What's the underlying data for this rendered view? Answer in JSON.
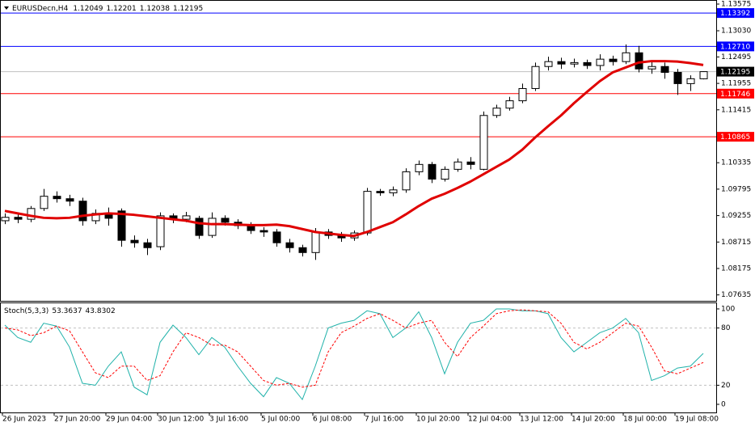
{
  "chart_data": [
    {
      "type": "candlestick",
      "title": "EURUSDecn,H4",
      "candles": {
        "open": [
          1.0915,
          1.0922,
          1.0918,
          1.094,
          1.0965,
          1.096,
          1.0955,
          1.0915,
          1.093,
          1.0935,
          1.0875,
          1.087,
          1.0862,
          1.0925,
          1.0918,
          1.092,
          1.0885,
          1.092,
          1.0912,
          1.0905,
          1.0895,
          1.0892,
          1.087,
          1.086,
          1.085,
          1.0892,
          1.0885,
          1.088,
          1.089,
          1.0975,
          1.0972,
          1.0978,
          1.1015,
          1.103,
          1.1,
          1.102,
          1.1035,
          1.102,
          1.113,
          1.1145,
          1.116,
          1.1185,
          1.123,
          1.124,
          1.1235,
          1.1238,
          1.1232,
          1.1245,
          1.124,
          1.1258,
          1.1225,
          1.123,
          1.1218,
          1.1195,
          1.12049
        ],
        "high": [
          1.093,
          1.0928,
          1.0945,
          1.098,
          1.0975,
          1.0968,
          1.0962,
          1.0938,
          1.0942,
          1.094,
          1.0885,
          1.0878,
          1.0932,
          1.093,
          1.0933,
          1.0925,
          1.0932,
          1.0926,
          1.0918,
          1.0912,
          1.0902,
          1.0898,
          1.0878,
          1.0866,
          1.09,
          1.0898,
          1.0892,
          1.0895,
          1.0982,
          1.098,
          1.0985,
          1.1022,
          1.1038,
          1.1035,
          1.1026,
          1.1042,
          1.1045,
          1.1138,
          1.1152,
          1.1168,
          1.1195,
          1.1238,
          1.125,
          1.1248,
          1.1246,
          1.1244,
          1.1255,
          1.1252,
          1.1275,
          1.1272,
          1.124,
          1.1238,
          1.1225,
          1.1212,
          1.12201
        ],
        "low": [
          1.0908,
          1.091,
          1.0912,
          1.0935,
          1.0952,
          1.0945,
          1.0905,
          1.0908,
          1.0905,
          1.0862,
          1.086,
          1.0845,
          1.0855,
          1.091,
          1.0912,
          1.0878,
          1.088,
          1.0905,
          1.0898,
          1.0888,
          1.0882,
          1.0862,
          1.085,
          1.0842,
          1.0835,
          1.0878,
          1.0872,
          1.0874,
          1.0885,
          1.0966,
          1.0965,
          1.0972,
          1.1008,
          1.0992,
          1.0995,
          1.1015,
          1.102,
          1.1018,
          1.1125,
          1.114,
          1.1155,
          1.118,
          1.1222,
          1.1225,
          1.1228,
          1.1225,
          1.1222,
          1.1232,
          1.1235,
          1.1218,
          1.1215,
          1.1205,
          1.1172,
          1.118,
          1.12038
        ],
        "close": [
          1.0922,
          1.0918,
          1.094,
          1.0965,
          1.096,
          1.0955,
          1.0915,
          1.093,
          1.092,
          1.0875,
          1.087,
          1.086,
          1.0925,
          1.0918,
          1.0925,
          1.0885,
          1.092,
          1.0912,
          1.0905,
          1.0895,
          1.0892,
          1.087,
          1.086,
          1.085,
          1.0892,
          1.0885,
          1.088,
          1.089,
          1.0975,
          1.0972,
          1.0978,
          1.1015,
          1.103,
          1.1,
          1.102,
          1.1035,
          1.103,
          1.113,
          1.1145,
          1.116,
          1.1185,
          1.123,
          1.124,
          1.1235,
          1.1238,
          1.1232,
          1.1245,
          1.124,
          1.1258,
          1.1225,
          1.123,
          1.1218,
          1.1195,
          1.1205,
          1.12195
        ],
        "up_color": "#ffffff",
        "down_color": "#000000"
      },
      "lines": [
        {
          "color": "#e00000",
          "values": [
            1.0935,
            1.093,
            1.0925,
            1.0921,
            1.092,
            1.0921,
            1.0925,
            1.0928,
            1.093,
            1.0929,
            1.0927,
            1.0924,
            1.0921,
            1.0918,
            1.0915,
            1.091,
            1.0908,
            1.0908,
            1.0907,
            1.0906,
            1.0906,
            1.0907,
            1.0904,
            1.0898,
            1.0892,
            1.0889,
            1.0886,
            1.0884,
            1.0892,
            1.0902,
            1.0912,
            1.0928,
            1.0945,
            1.096,
            1.097,
            1.0982,
            1.0995,
            1.101,
            1.1025,
            1.104,
            1.106,
            1.1085,
            1.1108,
            1.113,
            1.1155,
            1.1178,
            1.12,
            1.1218,
            1.1228,
            1.1238,
            1.1241,
            1.1241,
            1.124,
            1.1237,
            1.1233
          ]
        }
      ],
      "levels": [
        {
          "value": 1.13392,
          "label": "1.13392",
          "color": "#0000ff",
          "box": "#0000ff"
        },
        {
          "value": 1.1271,
          "label": "1.12710",
          "color": "#0000ff",
          "box": "#0000ff"
        },
        {
          "value": 1.12195,
          "label": "1.12195",
          "color": "#c0c0c0",
          "box": "#000000"
        },
        {
          "value": 1.11746,
          "label": "1.11746",
          "color": "#ff0000",
          "box": "#ff0000"
        },
        {
          "value": 1.10865,
          "label": "1.10865",
          "color": "#ff0000",
          "box": "#ff0000"
        }
      ],
      "xlim": [
        -0.375,
        55
      ],
      "xticks": [
        {
          "value": 0,
          "label": "26 Jun 2023"
        },
        {
          "value": 4,
          "label": "27 Jun 20:00"
        },
        {
          "value": 8,
          "label": "29 Jun 04:00"
        },
        {
          "value": 12,
          "label": "30 Jun 12:00"
        },
        {
          "value": 16,
          "label": "3 Jul 16:00"
        },
        {
          "value": 20,
          "label": "5 Jul 00:00"
        },
        {
          "value": 24,
          "label": "6 Jul 08:00"
        },
        {
          "value": 28,
          "label": "7 Jul 16:00"
        },
        {
          "value": 32,
          "label": "10 Jul 20:00"
        },
        {
          "value": 36,
          "label": "12 Jul 04:00"
        },
        {
          "value": 40,
          "label": "13 Jul 12:00"
        },
        {
          "value": 44,
          "label": "14 Jul 20:00"
        },
        {
          "value": 48,
          "label": "18 Jul 00:00"
        },
        {
          "value": 52,
          "label": "19 Jul 08:00"
        }
      ],
      "ylim": [
        1.07514,
        1.13658
      ],
      "yticks": [
        1.13575,
        {
          "value": 1.1303,
          "label": "1.13030"
        },
        1.12495,
        1.11955,
        1.11415,
        1.10335,
        1.09795,
        1.09255,
        1.08715,
        1.08175,
        1.07635
      ]
    },
    {
      "type": "line",
      "title": "Stoch(5,3,3)",
      "series": [
        {
          "color": "#20b2aa",
          "dash": false,
          "values": [
            83,
            70,
            65,
            85,
            82,
            60,
            22,
            20,
            40,
            55,
            18,
            10,
            65,
            83,
            70,
            52,
            70,
            60,
            40,
            22,
            8,
            28,
            22,
            5,
            40,
            80,
            85,
            88,
            98,
            95,
            70,
            80,
            97,
            70,
            32,
            65,
            85,
            88,
            100,
            100,
            98,
            98,
            95,
            70,
            55,
            65,
            75,
            80,
            90,
            75,
            25,
            30,
            38,
            40,
            53.3637
          ]
        },
        {
          "color": "#ff0000",
          "dash": true,
          "values": [
            80,
            78,
            72,
            75,
            82,
            77,
            55,
            33,
            28,
            40,
            40,
            25,
            30,
            55,
            75,
            70,
            62,
            62,
            55,
            40,
            25,
            20,
            22,
            18,
            20,
            55,
            75,
            82,
            90,
            95,
            88,
            80,
            85,
            88,
            65,
            50,
            70,
            82,
            95,
            98,
            99,
            98,
            97,
            85,
            65,
            58,
            65,
            75,
            85,
            82,
            60,
            35,
            32,
            38,
            43.8302
          ]
        }
      ],
      "levels": [
        80,
        20
      ],
      "ylim": [
        -8.5,
        105.9
      ],
      "yticks": [
        100,
        80,
        20,
        0
      ]
    }
  ]
}
